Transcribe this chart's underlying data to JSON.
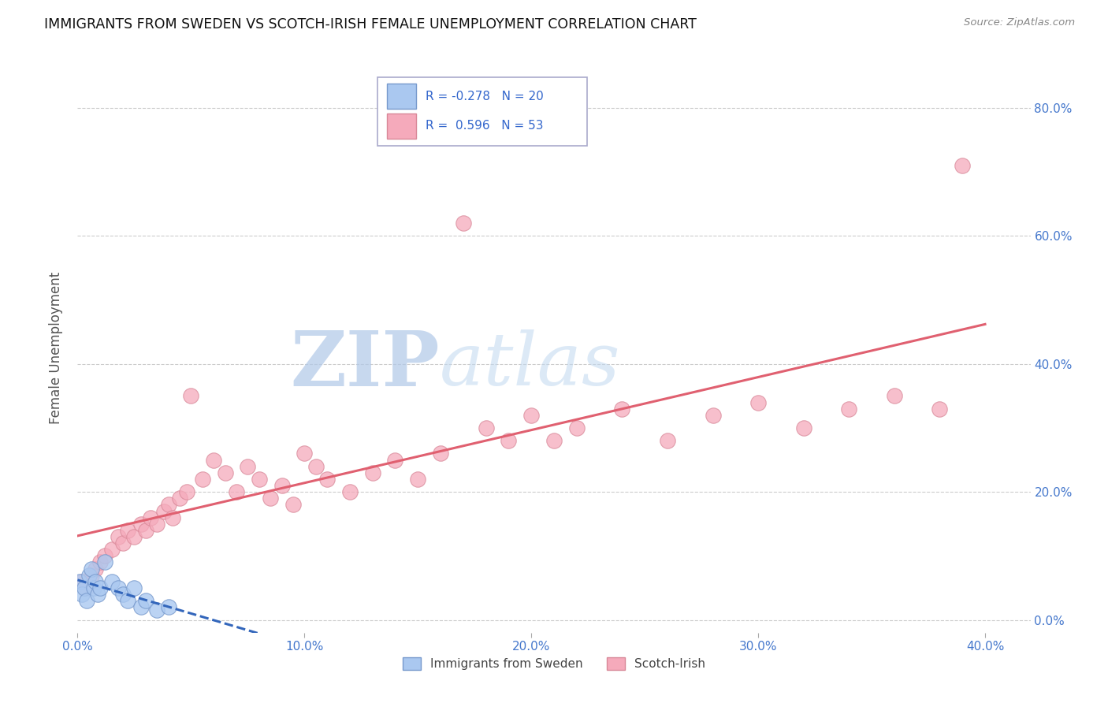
{
  "title": "IMMIGRANTS FROM SWEDEN VS SCOTCH-IRISH FEMALE UNEMPLOYMENT CORRELATION CHART",
  "source": "Source: ZipAtlas.com",
  "xlim": [
    0.0,
    0.42
  ],
  "ylim": [
    -0.02,
    0.87
  ],
  "ylabel": "Female Unemployment",
  "legend_labels": [
    "Immigrants from Sweden",
    "Scotch-Irish"
  ],
  "sweden_R": -0.278,
  "sweden_N": 20,
  "scotch_R": 0.596,
  "scotch_N": 53,
  "sweden_color": "#aac8f0",
  "scotch_color": "#f5aabb",
  "sweden_line_color": "#3366bb",
  "scotch_line_color": "#e06070",
  "watermark_zip": "ZIP",
  "watermark_atlas": "atlas",
  "sweden_points": [
    [
      0.001,
      0.06
    ],
    [
      0.002,
      0.04
    ],
    [
      0.003,
      0.05
    ],
    [
      0.004,
      0.03
    ],
    [
      0.005,
      0.07
    ],
    [
      0.006,
      0.08
    ],
    [
      0.007,
      0.05
    ],
    [
      0.008,
      0.06
    ],
    [
      0.009,
      0.04
    ],
    [
      0.01,
      0.05
    ],
    [
      0.012,
      0.09
    ],
    [
      0.015,
      0.06
    ],
    [
      0.018,
      0.05
    ],
    [
      0.02,
      0.04
    ],
    [
      0.022,
      0.03
    ],
    [
      0.025,
      0.05
    ],
    [
      0.028,
      0.02
    ],
    [
      0.03,
      0.03
    ],
    [
      0.035,
      0.015
    ],
    [
      0.04,
      0.02
    ]
  ],
  "scotch_points": [
    [
      0.002,
      0.06
    ],
    [
      0.004,
      0.05
    ],
    [
      0.006,
      0.07
    ],
    [
      0.008,
      0.08
    ],
    [
      0.01,
      0.09
    ],
    [
      0.012,
      0.1
    ],
    [
      0.015,
      0.11
    ],
    [
      0.018,
      0.13
    ],
    [
      0.02,
      0.12
    ],
    [
      0.022,
      0.14
    ],
    [
      0.025,
      0.13
    ],
    [
      0.028,
      0.15
    ],
    [
      0.03,
      0.14
    ],
    [
      0.032,
      0.16
    ],
    [
      0.035,
      0.15
    ],
    [
      0.038,
      0.17
    ],
    [
      0.04,
      0.18
    ],
    [
      0.042,
      0.16
    ],
    [
      0.045,
      0.19
    ],
    [
      0.048,
      0.2
    ],
    [
      0.05,
      0.35
    ],
    [
      0.055,
      0.22
    ],
    [
      0.06,
      0.25
    ],
    [
      0.065,
      0.23
    ],
    [
      0.07,
      0.2
    ],
    [
      0.075,
      0.24
    ],
    [
      0.08,
      0.22
    ],
    [
      0.085,
      0.19
    ],
    [
      0.09,
      0.21
    ],
    [
      0.095,
      0.18
    ],
    [
      0.1,
      0.26
    ],
    [
      0.105,
      0.24
    ],
    [
      0.11,
      0.22
    ],
    [
      0.12,
      0.2
    ],
    [
      0.13,
      0.23
    ],
    [
      0.14,
      0.25
    ],
    [
      0.15,
      0.22
    ],
    [
      0.16,
      0.26
    ],
    [
      0.17,
      0.62
    ],
    [
      0.18,
      0.3
    ],
    [
      0.19,
      0.28
    ],
    [
      0.2,
      0.32
    ],
    [
      0.21,
      0.28
    ],
    [
      0.22,
      0.3
    ],
    [
      0.24,
      0.33
    ],
    [
      0.26,
      0.28
    ],
    [
      0.28,
      0.32
    ],
    [
      0.3,
      0.34
    ],
    [
      0.32,
      0.3
    ],
    [
      0.34,
      0.33
    ],
    [
      0.36,
      0.35
    ],
    [
      0.38,
      0.33
    ],
    [
      0.39,
      0.71
    ]
  ],
  "ytick_vals": [
    0.0,
    0.2,
    0.4,
    0.6,
    0.8
  ],
  "xtick_vals": [
    0.0,
    0.1,
    0.2,
    0.3,
    0.4
  ]
}
